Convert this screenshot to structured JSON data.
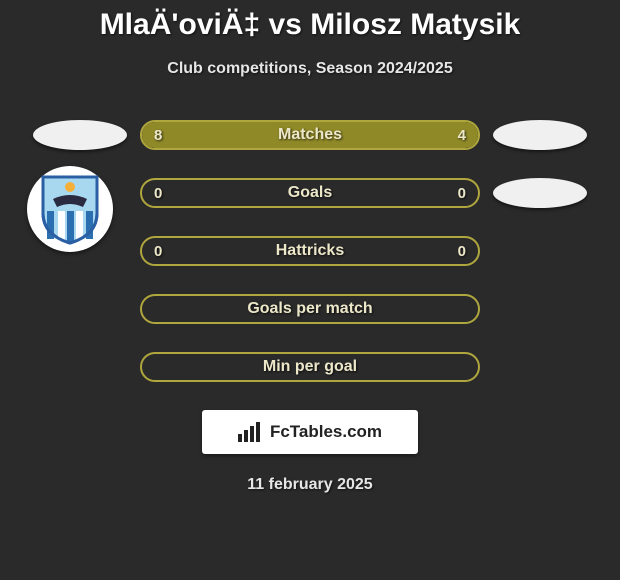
{
  "title": "MlaÄ'oviÄ‡ vs Milosz Matysik",
  "subtitle": "Club competitions, Season 2024/2025",
  "date": "11 february 2025",
  "brand_text": "FcTables.com",
  "accent_border_color": "#b0a63e",
  "accent_fill_color": "#8f8928",
  "background_color": "#2a2a2a",
  "text_color": "#ece7c9",
  "badge": {
    "sky_color": "#a7d8f0",
    "shield_border": "#2b5fa3",
    "shield_stripe": "#2b6fb0",
    "bird_color": "#2a2a40",
    "sun_color": "#f5b03a"
  },
  "rows": [
    {
      "label": "Matches",
      "left_value": "8",
      "right_value": "4",
      "left_fill_pct": 66,
      "right_fill_pct": 34,
      "left_ellipse": true,
      "right_ellipse": true,
      "left_badge": false
    },
    {
      "label": "Goals",
      "left_value": "0",
      "right_value": "0",
      "left_fill_pct": 0,
      "right_fill_pct": 0,
      "left_ellipse": false,
      "right_ellipse": true,
      "left_badge": true
    },
    {
      "label": "Hattricks",
      "left_value": "0",
      "right_value": "0",
      "left_fill_pct": 0,
      "right_fill_pct": 0,
      "left_ellipse": false,
      "right_ellipse": false,
      "left_badge": false
    },
    {
      "label": "Goals per match",
      "left_value": "",
      "right_value": "",
      "left_fill_pct": 0,
      "right_fill_pct": 0,
      "left_ellipse": false,
      "right_ellipse": false,
      "left_badge": false
    },
    {
      "label": "Min per goal",
      "left_value": "",
      "right_value": "",
      "left_fill_pct": 0,
      "right_fill_pct": 0,
      "left_ellipse": false,
      "right_ellipse": false,
      "left_badge": false
    }
  ]
}
